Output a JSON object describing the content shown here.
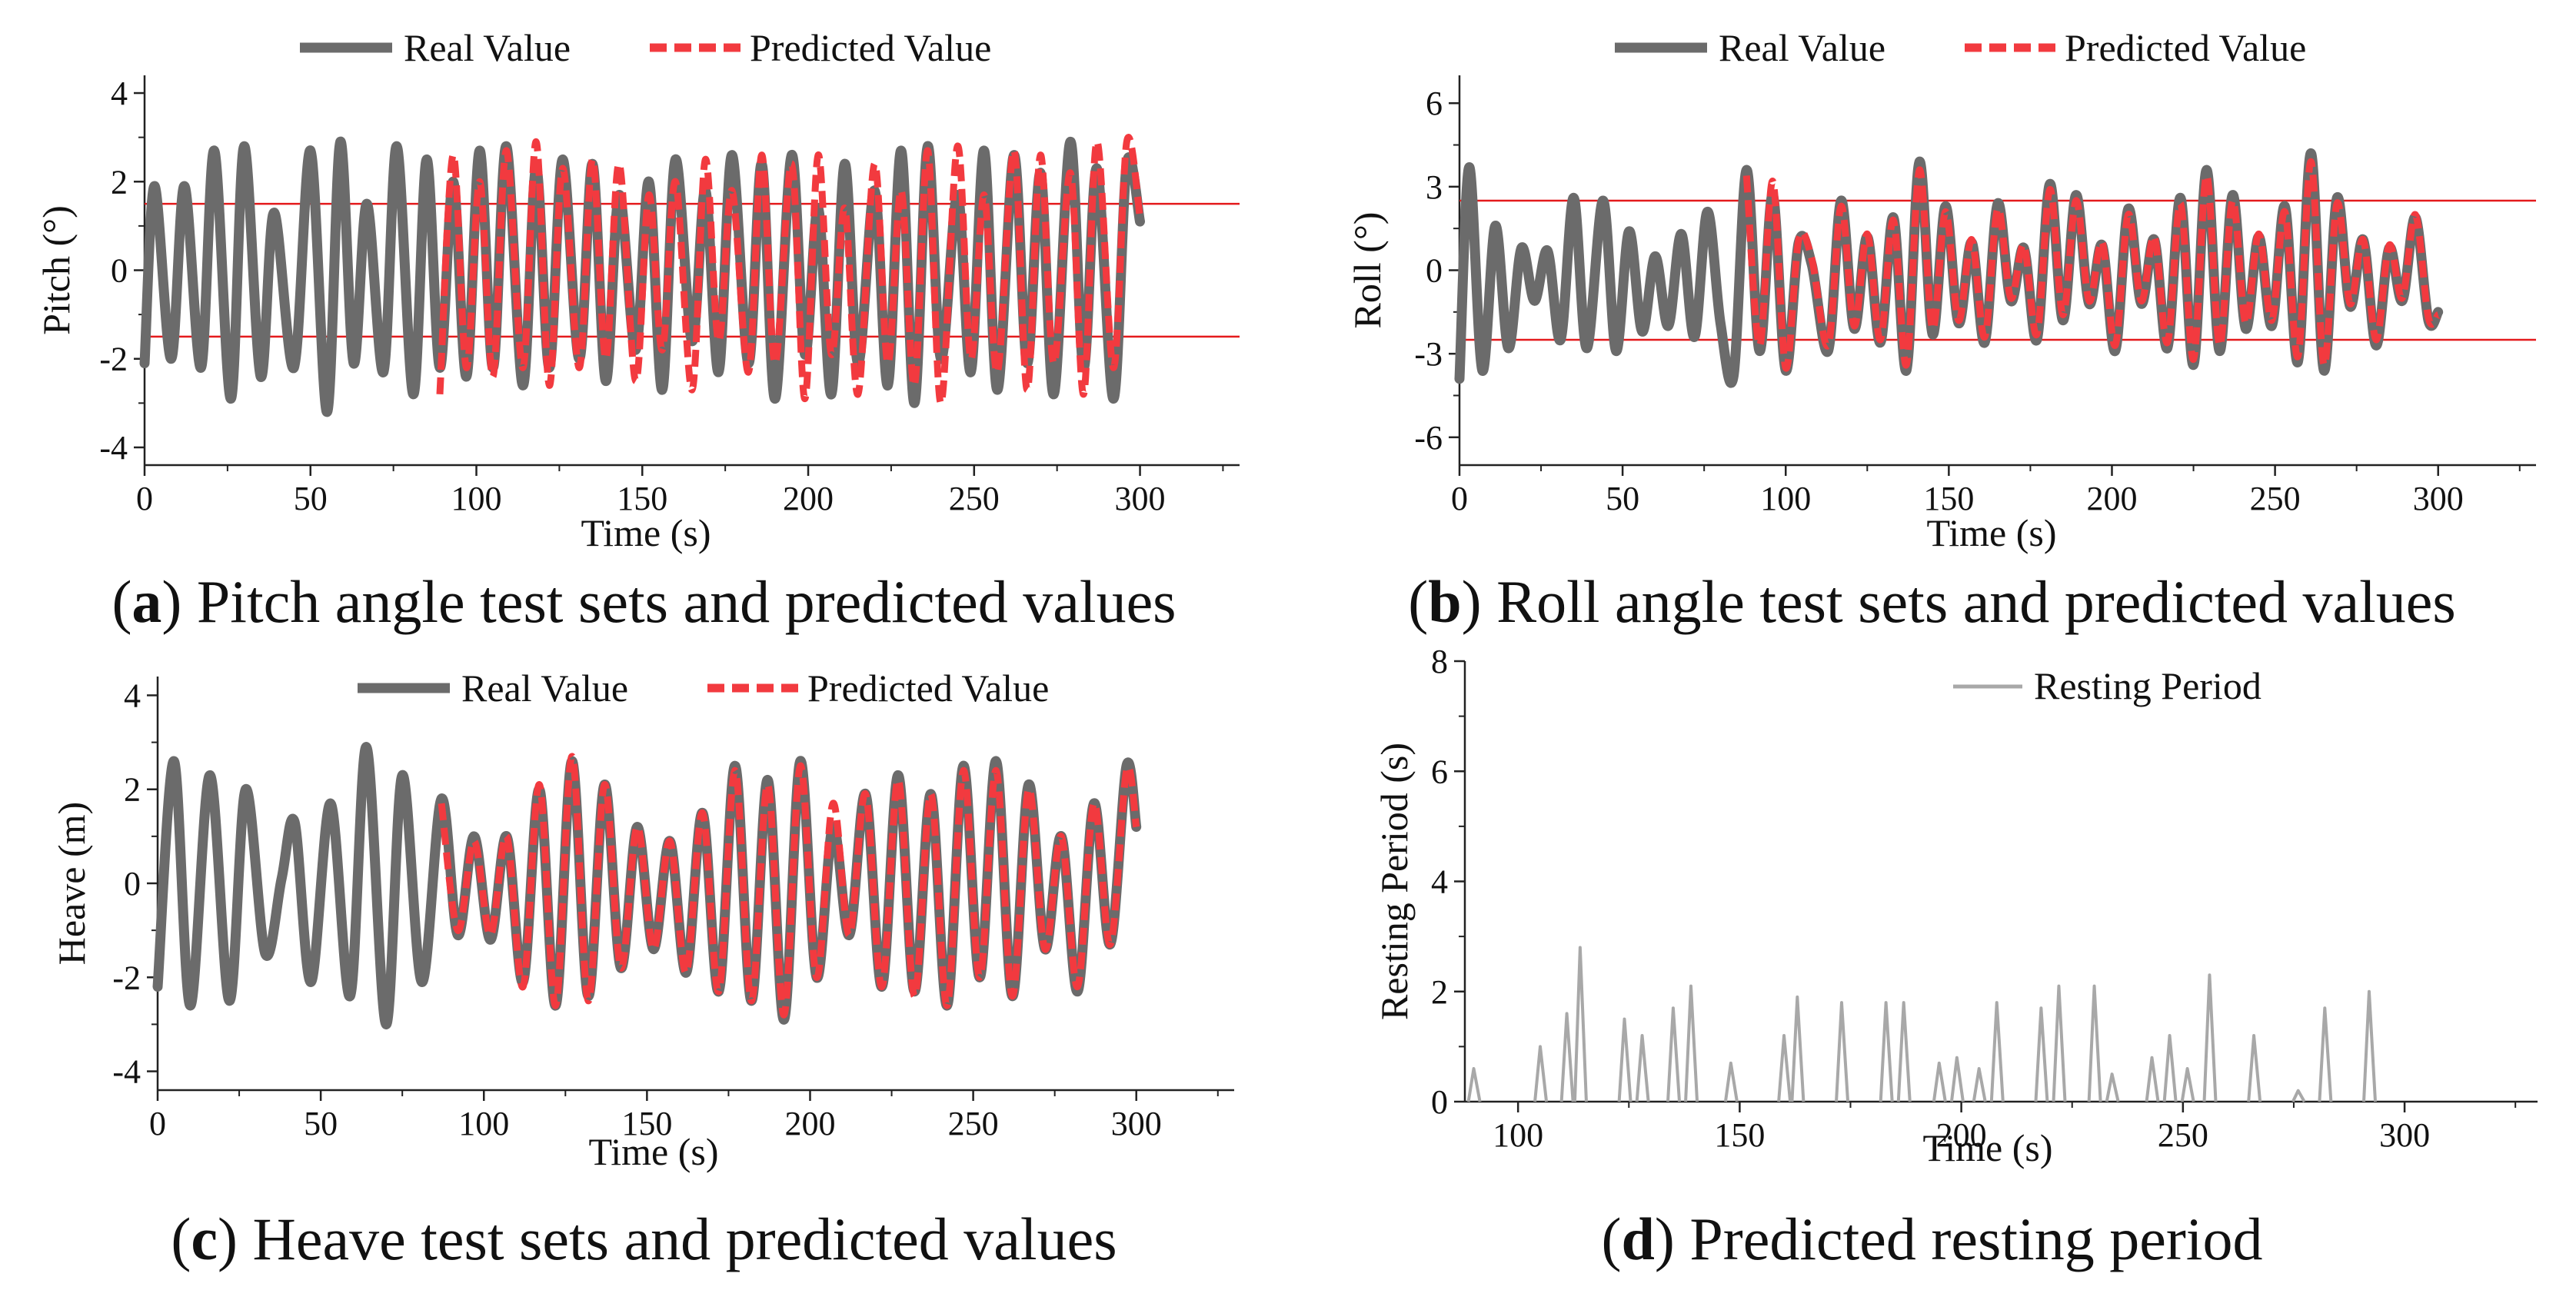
{
  "colors": {
    "real": "#6b6b6b",
    "predicted": "#f23a3f",
    "threshold": "#e41a1c",
    "resting": "#a8a8a8",
    "axis": "#222222"
  },
  "legend": {
    "real": "Real Value",
    "predicted": "Predicted Value",
    "resting": "Resting Period"
  },
  "captions": {
    "a": {
      "tag": "a",
      "text": " Pitch angle test sets and predicted values"
    },
    "b": {
      "tag": "b",
      "text": " Roll angle test sets and predicted values"
    },
    "c": {
      "tag": "c",
      "text": " Heave test sets and predicted values"
    },
    "d": {
      "tag": "d",
      "text": " Predicted resting period"
    }
  },
  "chart_data": [
    {
      "id": "a",
      "type": "line",
      "xlabel": "Time (s)",
      "ylabel": "Pitch (°)",
      "xlim": [
        0,
        330
      ],
      "ylim": [
        -4.4,
        4.4
      ],
      "xticks": [
        0,
        50,
        100,
        150,
        200,
        250,
        300
      ],
      "yticks": [
        -4,
        -2,
        0,
        2,
        4
      ],
      "hlines": [
        1.5,
        -1.5
      ],
      "predicted_start": 88,
      "series": [
        {
          "name": "Real Value",
          "x": [
            0,
            3,
            8,
            12,
            17,
            21,
            26,
            30,
            35,
            39,
            45,
            50,
            55,
            59,
            63,
            67,
            72,
            76,
            81,
            85,
            89,
            93,
            97,
            101,
            105,
            109,
            114,
            118,
            122,
            126,
            131,
            135,
            139,
            143,
            148,
            152,
            156,
            160,
            165,
            169,
            173,
            177,
            182,
            186,
            190,
            195,
            199,
            203,
            207,
            211,
            215,
            220,
            224,
            228,
            232,
            236,
            240,
            245,
            249,
            253,
            257,
            262,
            266,
            270,
            274,
            279,
            283,
            287,
            292,
            296,
            300
          ],
          "y": [
            -2.1,
            1.9,
            -2.0,
            1.9,
            -2.2,
            2.7,
            -2.9,
            2.8,
            -2.4,
            1.3,
            -2.2,
            2.7,
            -3.2,
            2.9,
            -2.1,
            1.5,
            -2.3,
            2.8,
            -2.8,
            2.5,
            -2.2,
            2.0,
            -2.4,
            2.7,
            -2.2,
            2.8,
            -2.6,
            2.3,
            -2.2,
            2.5,
            -2.0,
            2.4,
            -2.5,
            1.7,
            -1.8,
            2.0,
            -2.7,
            2.5,
            -1.6,
            1.8,
            -2.3,
            2.6,
            -2.1,
            2.4,
            -2.9,
            2.6,
            -1.9,
            1.4,
            -2.8,
            2.4,
            -2.1,
            1.8,
            -2.6,
            2.7,
            -3.0,
            2.8,
            -2.0,
            1.7,
            -2.3,
            2.7,
            -2.7,
            2.6,
            -2.1,
            2.2,
            -2.8,
            2.9,
            -2.2,
            2.3,
            -2.9,
            2.4,
            1.1
          ]
        },
        {
          "name": "Predicted Value",
          "x": [
            89,
            93,
            97,
            101,
            105,
            109,
            114,
            118,
            122,
            126,
            131,
            135,
            139,
            143,
            148,
            152,
            156,
            160,
            165,
            169,
            173,
            177,
            182,
            186,
            190,
            195,
            199,
            203,
            207,
            211,
            215,
            220,
            224,
            228,
            232,
            236,
            240,
            245,
            249,
            253,
            257,
            262,
            266,
            270,
            274,
            279,
            283,
            287,
            292,
            296,
            300
          ],
          "y": [
            -2.8,
            2.6,
            -2.2,
            2.0,
            -2.4,
            2.7,
            -2.2,
            2.9,
            -2.6,
            2.3,
            -2.2,
            2.5,
            -2.0,
            2.4,
            -2.5,
            1.7,
            -1.8,
            2.0,
            -2.7,
            2.5,
            -1.6,
            1.8,
            -2.3,
            2.6,
            -2.1,
            2.4,
            -2.9,
            2.6,
            -1.9,
            1.4,
            -2.8,
            2.4,
            -2.1,
            1.8,
            -2.6,
            2.7,
            -3.0,
            2.8,
            -2.0,
            1.7,
            -2.3,
            2.7,
            -2.7,
            2.6,
            -2.1,
            2.2,
            -2.8,
            2.9,
            -2.2,
            2.9,
            1.2
          ]
        }
      ]
    },
    {
      "id": "b",
      "type": "line",
      "xlabel": "Time (s)",
      "ylabel": "Roll (°)",
      "xlim": [
        0,
        330
      ],
      "ylim": [
        -7,
        7
      ],
      "xticks": [
        0,
        50,
        100,
        150,
        200,
        250,
        300
      ],
      "yticks": [
        -6,
        -3,
        0,
        3,
        6
      ],
      "hlines": [
        2.5,
        -2.5
      ],
      "predicted_start": 88,
      "series": [
        {
          "name": "Real Value",
          "x": [
            0,
            3,
            7,
            11,
            15,
            19,
            23,
            27,
            31,
            35,
            39,
            44,
            48,
            52,
            56,
            60,
            64,
            68,
            72,
            76,
            80,
            84,
            88,
            92,
            96,
            100,
            104,
            108,
            113,
            117,
            121,
            125,
            129,
            133,
            137,
            141,
            145,
            149,
            153,
            157,
            161,
            165,
            169,
            173,
            177,
            181,
            185,
            189,
            193,
            197,
            201,
            205,
            209,
            213,
            217,
            221,
            225,
            229,
            233,
            237,
            241,
            245,
            249,
            253,
            257,
            261,
            265,
            269,
            273,
            277,
            281,
            285,
            289,
            293,
            297,
            300
          ],
          "y": [
            -3.9,
            3.7,
            -3.6,
            1.6,
            -2.8,
            0.8,
            -1.1,
            0.7,
            -2.5,
            2.6,
            -2.8,
            2.5,
            -2.9,
            1.4,
            -2.2,
            0.5,
            -2.0,
            1.3,
            -2.4,
            2.1,
            -1.9,
            -3.8,
            3.6,
            -2.9,
            2.7,
            -3.6,
            1.0,
            0.2,
            -2.9,
            2.5,
            -2.1,
            1.2,
            -2.6,
            1.9,
            -3.6,
            3.9,
            -2.3,
            2.3,
            -1.9,
            1.0,
            -2.6,
            2.4,
            -1.1,
            0.8,
            -2.5,
            3.1,
            -1.8,
            2.7,
            -1.2,
            0.9,
            -2.9,
            2.2,
            -1.2,
            1.1,
            -2.8,
            2.6,
            -3.4,
            3.6,
            -2.9,
            2.7,
            -2.1,
            1.2,
            -2.0,
            2.3,
            -3.3,
            4.2,
            -3.6,
            2.6,
            -1.3,
            1.1,
            -2.7,
            0.8,
            -1.1,
            1.9,
            -1.8,
            -1.5
          ]
        },
        {
          "name": "Predicted Value",
          "x": [
            88,
            92,
            96,
            100,
            104,
            108,
            113,
            117,
            121,
            125,
            129,
            133,
            137,
            141,
            145,
            149,
            153,
            157,
            161,
            165,
            169,
            173,
            177,
            181,
            185,
            189,
            193,
            197,
            201,
            205,
            209,
            213,
            217,
            221,
            225,
            229,
            233,
            237,
            241,
            245,
            249,
            253,
            257,
            261,
            265,
            269,
            273,
            277,
            281,
            285,
            289,
            293,
            297,
            300
          ],
          "y": [
            3.4,
            -2.7,
            3.2,
            -3.5,
            1.1,
            0.4,
            -2.7,
            2.3,
            -2.0,
            1.3,
            -2.5,
            1.8,
            -3.4,
            3.6,
            -2.1,
            2.1,
            -1.8,
            1.1,
            -2.4,
            2.2,
            -1.0,
            0.9,
            -2.3,
            2.9,
            -1.6,
            2.5,
            -1.1,
            1.0,
            -2.7,
            2.0,
            -1.1,
            1.2,
            -2.6,
            2.4,
            -3.2,
            3.4,
            -2.7,
            2.5,
            -1.9,
            1.3,
            -1.8,
            2.1,
            -3.1,
            3.9,
            -3.4,
            2.4,
            -1.2,
            1.1,
            -2.5,
            0.9,
            -1.0,
            2.0,
            -1.7,
            -1.6
          ]
        }
      ]
    },
    {
      "id": "c",
      "type": "line",
      "xlabel": "Time (s)",
      "ylabel": "Heave (m)",
      "xlim": [
        0,
        330
      ],
      "ylim": [
        -4.4,
        4.4
      ],
      "xticks": [
        0,
        50,
        100,
        150,
        200,
        250,
        300
      ],
      "yticks": [
        -4,
        -2,
        0,
        2,
        4
      ],
      "hlines": [],
      "predicted_start": 88,
      "series": [
        {
          "name": "Real Value",
          "x": [
            0,
            5,
            10,
            16,
            22,
            27,
            33,
            38,
            42,
            47,
            53,
            59,
            64,
            70,
            75,
            81,
            87,
            92,
            97,
            102,
            107,
            112,
            117,
            122,
            127,
            132,
            137,
            142,
            147,
            152,
            157,
            162,
            167,
            172,
            177,
            182,
            187,
            192,
            197,
            202,
            207,
            212,
            217,
            222,
            227,
            232,
            237,
            242,
            247,
            252,
            257,
            262,
            267,
            272,
            277,
            282,
            287,
            292,
            297,
            300
          ],
          "y": [
            -2.2,
            2.6,
            -2.6,
            2.3,
            -2.5,
            2.0,
            -1.5,
            0.1,
            1.3,
            -2.1,
            1.7,
            -2.4,
            2.9,
            -3.0,
            2.3,
            -2.1,
            1.8,
            -1.1,
            1.0,
            -1.2,
            1.0,
            -2.1,
            2.0,
            -2.6,
            2.6,
            -2.4,
            2.1,
            -1.8,
            1.2,
            -1.4,
            0.9,
            -1.9,
            1.5,
            -2.3,
            2.5,
            -2.5,
            2.2,
            -2.9,
            2.6,
            -2.0,
            1.2,
            -1.1,
            1.9,
            -2.2,
            2.3,
            -2.3,
            1.9,
            -2.6,
            2.5,
            -2.0,
            2.6,
            -2.4,
            2.1,
            -1.4,
            1.0,
            -2.3,
            1.7,
            -1.3,
            2.5,
            1.2
          ]
        },
        {
          "name": "Predicted Value",
          "x": [
            87,
            92,
            97,
            102,
            107,
            112,
            117,
            122,
            127,
            132,
            137,
            142,
            147,
            152,
            157,
            162,
            167,
            172,
            177,
            182,
            187,
            192,
            197,
            202,
            207,
            212,
            217,
            222,
            227,
            232,
            237,
            242,
            247,
            252,
            257,
            262,
            267,
            272,
            277,
            282,
            287,
            292,
            297,
            300
          ],
          "y": [
            1.7,
            -1.0,
            0.9,
            -1.1,
            1.0,
            -2.2,
            2.1,
            -2.6,
            2.7,
            -2.5,
            2.1,
            -1.8,
            1.2,
            -1.4,
            0.9,
            -1.9,
            1.5,
            -2.3,
            2.4,
            -2.5,
            2.1,
            -2.8,
            2.5,
            -2.0,
            1.7,
            -1.1,
            1.9,
            -2.2,
            2.2,
            -2.4,
            1.9,
            -2.6,
            2.4,
            -2.0,
            2.4,
            -2.4,
            2.0,
            -1.4,
            1.0,
            -2.2,
            1.7,
            -1.3,
            2.4,
            1.2
          ]
        }
      ]
    },
    {
      "id": "d",
      "type": "line",
      "xlabel": "Time (s)",
      "ylabel": "Resting Period (s)",
      "xlim": [
        88,
        330
      ],
      "ylim": [
        0,
        8
      ],
      "xticks": [
        100,
        150,
        200,
        250,
        300
      ],
      "yticks": [
        0,
        2,
        4,
        6,
        8
      ],
      "series": [
        {
          "name": "Resting Period",
          "peaks": [
            [
              90,
              0.6
            ],
            [
              105,
              1.0
            ],
            [
              111,
              1.6
            ],
            [
              114,
              2.8
            ],
            [
              124,
              1.5
            ],
            [
              128,
              1.2
            ],
            [
              135,
              1.7
            ],
            [
              139,
              2.1
            ],
            [
              148,
              0.7
            ],
            [
              160,
              1.2
            ],
            [
              163,
              1.9
            ],
            [
              173,
              1.8
            ],
            [
              183,
              1.8
            ],
            [
              187,
              1.8
            ],
            [
              195,
              0.7
            ],
            [
              199,
              0.8
            ],
            [
              204,
              0.6
            ],
            [
              208,
              1.8
            ],
            [
              218,
              1.7
            ],
            [
              222,
              2.1
            ],
            [
              230,
              2.1
            ],
            [
              234,
              0.5
            ],
            [
              243,
              0.8
            ],
            [
              247,
              1.2
            ],
            [
              251,
              0.6
            ],
            [
              256,
              2.3
            ],
            [
              266,
              1.2
            ],
            [
              276,
              0.2
            ],
            [
              282,
              1.7
            ],
            [
              292,
              2.0
            ]
          ]
        }
      ]
    }
  ]
}
